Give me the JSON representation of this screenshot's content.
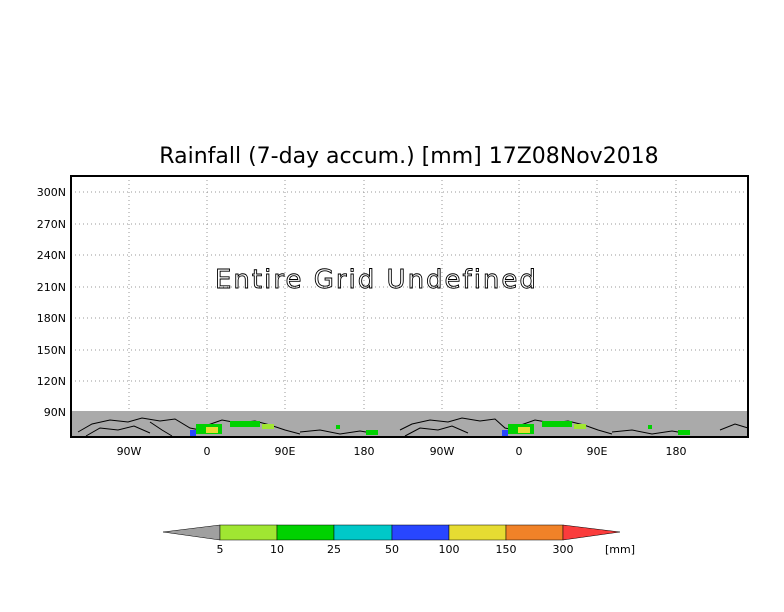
{
  "chart_data": {
    "type": "heatmap",
    "title": "Rainfall (7-day accum.) [mm] 17Z08Nov2018",
    "annotation": "Entire Grid Undefined",
    "x_tick_labels": [
      "90W",
      "0",
      "90E",
      "180",
      "90W",
      "0",
      "90E",
      "180"
    ],
    "y_tick_labels": [
      "300N",
      "270N",
      "240N",
      "210N",
      "180N",
      "150N",
      "120N",
      "90N"
    ],
    "grid": true,
    "undefined_band_color": "#aaaaaa",
    "colorbar": {
      "unit": "[mm]",
      "labels": [
        "5",
        "10",
        "25",
        "50",
        "100",
        "150",
        "300"
      ],
      "colors": [
        "#a0a0a0",
        "#a0e632",
        "#00d200",
        "#00c8c8",
        "#2846ff",
        "#e6dc32",
        "#f08228",
        "#fa3c3c"
      ]
    }
  }
}
